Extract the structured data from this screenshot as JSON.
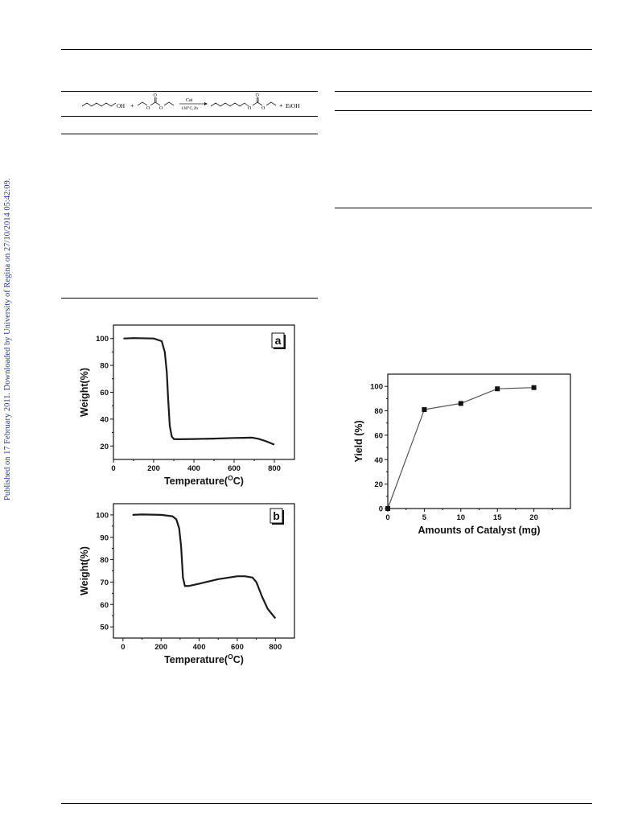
{
  "side_note": "Published on 17 February 2011. Downloaded by University of Regina on 27/10/2014 05:42:09.",
  "scheme": {
    "reactant_1_suffix": "OH",
    "plus_1": "+",
    "arrow_top": "Cat",
    "arrow_bottom": "130°C,2h",
    "plus_2": "+",
    "product_2": "EtOH",
    "carbonyl_o": "O",
    "ester_o": "O"
  },
  "chart_data": [
    {
      "id": "tga-a",
      "type": "line",
      "panel_label": "a",
      "xlabel": "Temperature(°C)",
      "xlabel_main": "Temperature(",
      "xlabel_sup": "O",
      "xlabel_end": "C)",
      "ylabel": "Weight(%)",
      "xlim": [
        0,
        900
      ],
      "ylim": [
        10,
        110
      ],
      "xticks": [
        "0",
        "200",
        "400",
        "600",
        "800"
      ],
      "yticks": [
        "20",
        "40",
        "60",
        "80",
        "100"
      ],
      "x": [
        50,
        100,
        200,
        240,
        255,
        265,
        272,
        280,
        290,
        300,
        320,
        400,
        500,
        600,
        650,
        690,
        720,
        760,
        800
      ],
      "y": [
        100,
        100.3,
        100,
        98,
        90,
        75,
        55,
        35,
        27,
        25.2,
        25,
        25.2,
        25.5,
        26,
        26.1,
        26.2,
        25.4,
        23.5,
        21
      ]
    },
    {
      "id": "tga-b",
      "type": "line",
      "panel_label": "b",
      "xlabel": "Temperature(°C)",
      "xlabel_main": "Temperature(",
      "xlabel_sup": "O",
      "xlabel_end": "C)",
      "ylabel": "Weight(%)",
      "xlim": [
        -50,
        900
      ],
      "ylim": [
        45,
        105
      ],
      "xticks": [
        "0",
        "200",
        "400",
        "600",
        "800"
      ],
      "yticks": [
        "50",
        "60",
        "70",
        "80",
        "90",
        "100"
      ],
      "x": [
        50,
        100,
        200,
        260,
        280,
        295,
        305,
        315,
        325,
        350,
        400,
        500,
        600,
        640,
        680,
        700,
        730,
        760,
        800
      ],
      "y": [
        100,
        100.2,
        100,
        99.4,
        98,
        94,
        86,
        72,
        68.2,
        68.3,
        69.3,
        71.3,
        72.6,
        72.6,
        72,
        70,
        63.5,
        58,
        53.8
      ]
    },
    {
      "id": "yield",
      "type": "line",
      "xlabel": "Amounts of Catalyst (mg)",
      "ylabel": "Yield (%)",
      "xlim": [
        0,
        25
      ],
      "ylim": [
        0,
        110
      ],
      "xticks": [
        "0",
        "5",
        "10",
        "15",
        "20"
      ],
      "yticks": [
        "0",
        "20",
        "40",
        "60",
        "80",
        "100"
      ],
      "x": [
        0,
        5,
        10,
        15,
        20
      ],
      "y": [
        0,
        81,
        86,
        98,
        99
      ]
    }
  ]
}
